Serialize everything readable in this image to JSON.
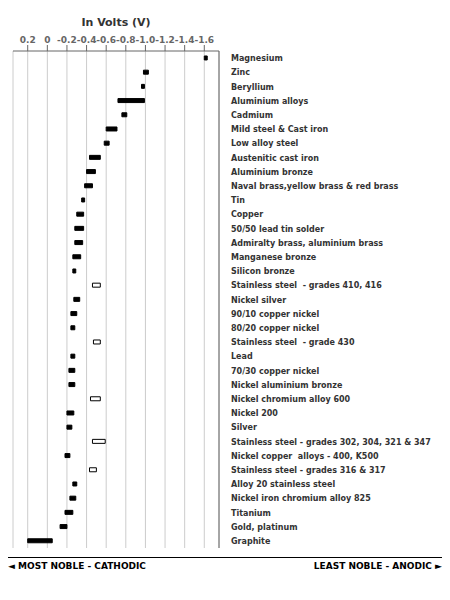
{
  "chart_data": {
    "type": "bar",
    "orientation": "horizontal",
    "title": "In Volts (V)",
    "annotations": [
      "◄ MOST NOBLE - CATHODIC",
      "LEAST NOBLE - ANODIC ►"
    ],
    "categories": [
      "Magnesium",
      "Zinc",
      "Beryllium",
      "Aluminium alloys",
      "Cadmium",
      "Mild steel & Cast iron",
      "Low alloy steel",
      "Austenitic cast iron",
      "Aluminium bronze",
      "Naval brass,yellow brass & red brass",
      "Tin",
      "Copper",
      "50/50 lead tin solder",
      "Admiralty brass, aluminium brass",
      "Manganese bronze",
      "Silicon bronze",
      "Stainless steel  - grades 410, 416",
      "Nickel silver",
      "90/10 copper nickel",
      "80/20 copper nickel",
      "Stainless steel  - grade 430",
      "Lead",
      "70/30 copper nickel",
      "Nickel aluminium bronze",
      "Nickel chromium alloy 600",
      "Nickel 200",
      "Silver",
      "Stainless steel - grades 302, 304, 321 & 347",
      "Nickel copper  alloys - 400, K500",
      "Stainless steel - grades 316 & 317",
      "Alloy 20 stainless steel",
      "Nickel iron chromium alloy 825",
      "Titanium",
      "Gold, platinum",
      "Graphite"
    ],
    "values": [
      [
        -1.6,
        -1.63
      ],
      [
        -0.98,
        -1.03
      ],
      [
        -0.96,
        -0.99
      ],
      [
        -0.72,
        -0.99
      ],
      [
        -0.76,
        -0.81
      ],
      [
        -0.6,
        -0.71
      ],
      [
        -0.58,
        -0.63
      ],
      [
        -0.43,
        -0.54
      ],
      [
        -0.4,
        -0.49
      ],
      [
        -0.38,
        -0.46
      ],
      [
        -0.35,
        -0.38
      ],
      [
        -0.3,
        -0.37
      ],
      [
        -0.28,
        -0.37
      ],
      [
        -0.28,
        -0.36
      ],
      [
        -0.26,
        -0.34
      ],
      [
        -0.26,
        -0.29
      ],
      [
        -0.46,
        -0.54
      ],
      [
        -0.27,
        -0.33
      ],
      [
        -0.24,
        -0.3
      ],
      [
        -0.24,
        -0.28
      ],
      [
        -0.47,
        -0.54
      ],
      [
        -0.24,
        -0.28
      ],
      [
        -0.22,
        -0.28
      ],
      [
        -0.22,
        -0.28
      ],
      [
        -0.44,
        -0.54
      ],
      [
        -0.2,
        -0.27
      ],
      [
        -0.2,
        -0.25
      ],
      [
        -0.46,
        -0.59
      ],
      [
        -0.18,
        -0.23
      ],
      [
        -0.43,
        -0.5
      ],
      [
        -0.26,
        -0.3
      ],
      [
        -0.23,
        -0.29
      ],
      [
        -0.18,
        -0.26
      ],
      [
        -0.13,
        -0.2
      ],
      [
        0.2,
        -0.05
      ]
    ],
    "colors": [
      "#000000",
      "#000000",
      "#000000",
      "#000000",
      "#000000",
      "#000000",
      "#000000",
      "#000000",
      "#000000",
      "#000000",
      "#000000",
      "#000000",
      "#000000",
      "#000000",
      "#000000",
      "#000000",
      "#ffffff",
      "#000000",
      "#000000",
      "#000000",
      "#ffffff",
      "#000000",
      "#000000",
      "#000000",
      "#ffffff",
      "#000000",
      "#000000",
      "#ffffff",
      "#000000",
      "#ffffff",
      "#000000",
      "#000000",
      "#000000",
      "#000000",
      "#000000"
    ],
    "xlim": [
      0.35,
      -1.75
    ],
    "xticks": [
      0.2,
      0,
      -0.2,
      -0.4,
      -0.6,
      -0.8,
      {
        "value": -1.0,
        "label": "-1.0"
      },
      -1.2,
      -1.4,
      -1.6
    ],
    "grid": true
  }
}
